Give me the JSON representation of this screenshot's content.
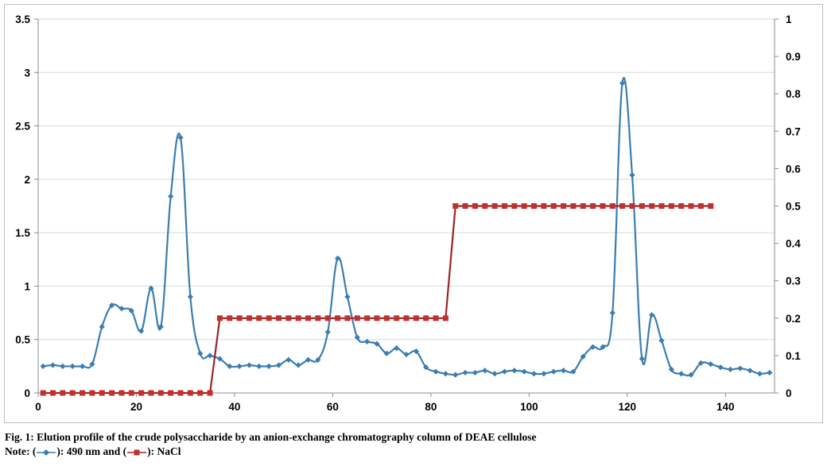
{
  "chart_data": {
    "type": "line",
    "x_axis": {
      "range": [
        0,
        150
      ],
      "ticks": [
        0,
        20,
        40,
        60,
        80,
        100,
        120,
        140
      ],
      "tick_labels": [
        "0",
        "20",
        "40",
        "60",
        "80",
        "100",
        "120",
        "140"
      ]
    },
    "y_axis_left": {
      "range": [
        0,
        3.5
      ],
      "ticks": [
        0,
        0.5,
        1,
        1.5,
        2,
        2.5,
        3,
        3.5
      ],
      "tick_labels": [
        "0",
        "0.5",
        "1",
        "1.5",
        "2",
        "2.5",
        "3",
        "3.5"
      ]
    },
    "y_axis_right": {
      "range": [
        0,
        1
      ],
      "ticks": [
        0,
        0.1,
        0.2,
        0.3,
        0.4,
        0.5,
        0.6,
        0.7,
        0.8,
        0.9,
        1
      ],
      "tick_labels": [
        "0",
        "0.1",
        "0.2",
        "0.3",
        "0.4",
        "0.5",
        "0.6",
        "0.7",
        "0.8",
        "0.9",
        "1"
      ]
    },
    "grid": "horizontal",
    "series": [
      {
        "name": "490 nm",
        "axis": "left",
        "color": "#3b7db0",
        "marker": "diamond",
        "smooth": true,
        "points": [
          [
            1,
            0.25
          ],
          [
            3,
            0.26
          ],
          [
            5,
            0.25
          ],
          [
            7,
            0.25
          ],
          [
            9,
            0.25
          ],
          [
            11,
            0.27
          ],
          [
            13,
            0.62
          ],
          [
            15,
            0.82
          ],
          [
            17,
            0.79
          ],
          [
            19,
            0.77
          ],
          [
            21,
            0.58
          ],
          [
            23,
            0.98
          ],
          [
            25,
            0.62
          ],
          [
            27,
            1.84
          ],
          [
            29,
            2.39
          ],
          [
            31,
            0.9
          ],
          [
            33,
            0.37
          ],
          [
            35,
            0.35
          ],
          [
            37,
            0.32
          ],
          [
            39,
            0.25
          ],
          [
            41,
            0.25
          ],
          [
            43,
            0.26
          ],
          [
            45,
            0.25
          ],
          [
            47,
            0.25
          ],
          [
            49,
            0.26
          ],
          [
            51,
            0.31
          ],
          [
            53,
            0.26
          ],
          [
            55,
            0.31
          ],
          [
            57,
            0.31
          ],
          [
            59,
            0.57
          ],
          [
            61,
            1.26
          ],
          [
            63,
            0.9
          ],
          [
            65,
            0.52
          ],
          [
            67,
            0.48
          ],
          [
            69,
            0.46
          ],
          [
            71,
            0.37
          ],
          [
            73,
            0.42
          ],
          [
            75,
            0.36
          ],
          [
            77,
            0.39
          ],
          [
            79,
            0.24
          ],
          [
            81,
            0.2
          ],
          [
            83,
            0.18
          ],
          [
            85,
            0.17
          ],
          [
            87,
            0.19
          ],
          [
            89,
            0.19
          ],
          [
            91,
            0.21
          ],
          [
            93,
            0.18
          ],
          [
            95,
            0.2
          ],
          [
            97,
            0.21
          ],
          [
            99,
            0.2
          ],
          [
            101,
            0.18
          ],
          [
            103,
            0.18
          ],
          [
            105,
            0.2
          ],
          [
            107,
            0.21
          ],
          [
            109,
            0.2
          ],
          [
            111,
            0.34
          ],
          [
            113,
            0.43
          ],
          [
            115,
            0.43
          ],
          [
            117,
            0.75
          ],
          [
            119,
            2.9
          ],
          [
            121,
            2.04
          ],
          [
            123,
            0.32
          ],
          [
            125,
            0.73
          ],
          [
            127,
            0.49
          ],
          [
            129,
            0.22
          ],
          [
            131,
            0.18
          ],
          [
            133,
            0.17
          ],
          [
            135,
            0.28
          ],
          [
            137,
            0.27
          ],
          [
            139,
            0.24
          ],
          [
            141,
            0.22
          ],
          [
            143,
            0.23
          ],
          [
            145,
            0.21
          ],
          [
            147,
            0.18
          ],
          [
            149,
            0.19
          ]
        ]
      },
      {
        "name": "NaCl",
        "axis": "right",
        "color": "#c0302c",
        "line_color": "#9b2424",
        "marker": "square",
        "step_points": [
          [
            1,
            0
          ],
          [
            3,
            0
          ],
          [
            5,
            0
          ],
          [
            7,
            0
          ],
          [
            9,
            0
          ],
          [
            11,
            0
          ],
          [
            13,
            0
          ],
          [
            15,
            0
          ],
          [
            17,
            0
          ],
          [
            19,
            0
          ],
          [
            21,
            0
          ],
          [
            23,
            0
          ],
          [
            25,
            0
          ],
          [
            27,
            0
          ],
          [
            29,
            0
          ],
          [
            31,
            0
          ],
          [
            33,
            0
          ],
          [
            35,
            0
          ],
          [
            37,
            0.2
          ],
          [
            39,
            0.2
          ],
          [
            41,
            0.2
          ],
          [
            43,
            0.2
          ],
          [
            45,
            0.2
          ],
          [
            47,
            0.2
          ],
          [
            49,
            0.2
          ],
          [
            51,
            0.2
          ],
          [
            53,
            0.2
          ],
          [
            55,
            0.2
          ],
          [
            57,
            0.2
          ],
          [
            59,
            0.2
          ],
          [
            61,
            0.2
          ],
          [
            63,
            0.2
          ],
          [
            65,
            0.2
          ],
          [
            67,
            0.2
          ],
          [
            69,
            0.2
          ],
          [
            71,
            0.2
          ],
          [
            73,
            0.2
          ],
          [
            75,
            0.2
          ],
          [
            77,
            0.2
          ],
          [
            79,
            0.2
          ],
          [
            81,
            0.2
          ],
          [
            83,
            0.2
          ],
          [
            85,
            0.5
          ],
          [
            87,
            0.5
          ],
          [
            89,
            0.5
          ],
          [
            91,
            0.5
          ],
          [
            93,
            0.5
          ],
          [
            95,
            0.5
          ],
          [
            97,
            0.5
          ],
          [
            99,
            0.5
          ],
          [
            101,
            0.5
          ],
          [
            103,
            0.5
          ],
          [
            105,
            0.5
          ],
          [
            107,
            0.5
          ],
          [
            109,
            0.5
          ],
          [
            111,
            0.5
          ],
          [
            113,
            0.5
          ],
          [
            115,
            0.5
          ],
          [
            117,
            0.5
          ],
          [
            119,
            0.5
          ],
          [
            121,
            0.5
          ],
          [
            123,
            0.5
          ],
          [
            125,
            0.5
          ],
          [
            127,
            0.5
          ],
          [
            129,
            0.5
          ],
          [
            131,
            0.5
          ],
          [
            133,
            0.5
          ],
          [
            135,
            0.5
          ],
          [
            137,
            0.5
          ]
        ]
      }
    ]
  },
  "caption": {
    "figure_title": "Fig. 1: Elution profile of the crude polysaccharide by an anion-exchange chromatography column of DEAE cellulose",
    "note_prefix": "Note: (",
    "note_middle": "): 490 nm and (",
    "note_suffix": "): NaCl"
  }
}
